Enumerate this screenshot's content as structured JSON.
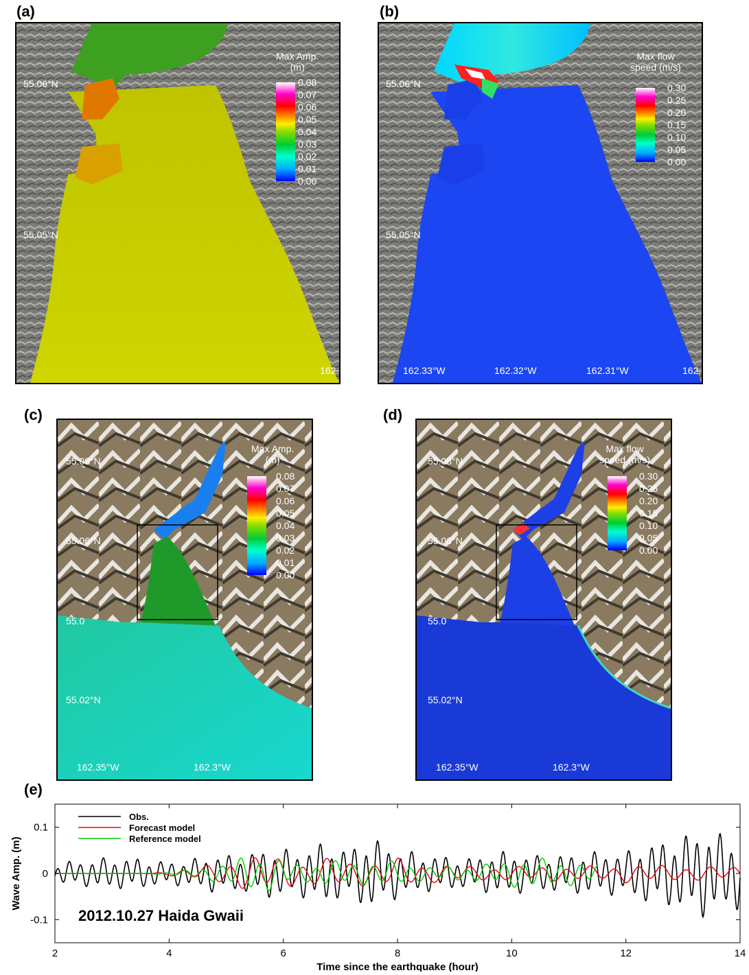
{
  "panels": {
    "a": {
      "label": "(a)",
      "lat_labels": [
        "55.06°N",
        "55.05°N"
      ],
      "lon_labels": [
        "162."
      ],
      "colorbar": {
        "title_lines": [
          "Max Amp.",
          "(m)"
        ],
        "ticks": [
          "0.08",
          "0.07",
          "0.06",
          "0.05",
          "0.04",
          "0.03",
          "0.02",
          "0.01",
          "0.00"
        ]
      }
    },
    "b": {
      "label": "(b)",
      "lat_labels": [
        "55.06°N",
        "55.05°N"
      ],
      "lon_labels": [
        "162.33°W",
        "162.32°W",
        "162.31°W",
        "162."
      ],
      "colorbar": {
        "title_lines": [
          "Max flow",
          "speed (m/s)"
        ],
        "ticks": [
          "0.30",
          "0.25",
          "0.20",
          "0.15",
          "0.10",
          "0.05",
          "0.00"
        ]
      }
    },
    "c": {
      "label": "(c)",
      "lat_labels": [
        "55.08°N",
        "55.06°N",
        "55.0",
        "55.02°N"
      ],
      "lon_labels": [
        "162.35°W",
        "162.3°W"
      ],
      "colorbar": {
        "title_lines": [
          "Max Amp.",
          "(m)"
        ],
        "ticks": [
          "0.08",
          "0.07",
          "0.06",
          "0.05",
          "0.04",
          "0.03",
          "0.02",
          "0.01",
          "0.00"
        ]
      }
    },
    "d": {
      "label": "(d)",
      "lat_labels": [
        "55.08°N",
        "55.06°N",
        "55.0",
        "55.02°N"
      ],
      "lon_labels": [
        "162.35°W",
        "162.3°W"
      ],
      "colorbar": {
        "title_lines": [
          "Max flow",
          "speed (m/s)"
        ],
        "ticks": [
          "0.30",
          "0.25",
          "0.20",
          "0.15",
          "0.10",
          "0.05",
          "0.00"
        ]
      }
    },
    "e": {
      "label": "(e)"
    }
  },
  "colors": {
    "obs": "#000000",
    "forecast": "#e8000b",
    "reference": "#00cc00"
  },
  "chart_data": {
    "type": "line",
    "title": "",
    "annotation": "2012.10.27 Haida Gwaii",
    "xlabel": "Time since the earthquake (hour)",
    "ylabel": "Wave Amp. (m)",
    "xlim": [
      2,
      14
    ],
    "ylim": [
      -0.15,
      0.15
    ],
    "xticks": [
      2,
      4,
      6,
      8,
      10,
      12,
      14
    ],
    "yticks": [
      {
        "v": 0.1,
        "label": "0.1"
      },
      {
        "v": 0,
        "label": "0"
      },
      {
        "v": -0.1,
        "label": "-0.1"
      }
    ],
    "legend_position": "top-left",
    "series": [
      {
        "name": "Obs.",
        "color": "#000000",
        "x": [
          2.0,
          2.25,
          2.5,
          2.75,
          3.0,
          3.25,
          3.5,
          3.75,
          4.0,
          4.25,
          4.5,
          4.75,
          5.0,
          5.25,
          5.5,
          5.75,
          6.0,
          6.25,
          6.5,
          6.75,
          7.0,
          7.25,
          7.5,
          7.75,
          8.0,
          8.25,
          8.5,
          8.75,
          9.0,
          9.25,
          9.5,
          9.75,
          10.0,
          10.25,
          10.5,
          10.75,
          11.0,
          11.25,
          11.5,
          11.75,
          12.0,
          12.25,
          12.5,
          12.75,
          13.0,
          13.25,
          13.5,
          13.75,
          14.0
        ],
        "amp": [
          0.015,
          0.02,
          0.02,
          0.025,
          0.025,
          0.025,
          0.025,
          0.02,
          0.02,
          0.02,
          0.025,
          0.03,
          0.03,
          0.03,
          0.035,
          0.04,
          0.04,
          0.035,
          0.045,
          0.05,
          0.04,
          0.045,
          0.06,
          0.05,
          0.04,
          0.035,
          0.03,
          0.03,
          0.025,
          0.025,
          0.03,
          0.035,
          0.035,
          0.03,
          0.03,
          0.03,
          0.03,
          0.035,
          0.035,
          0.035,
          0.035,
          0.045,
          0.05,
          0.055,
          0.06,
          0.07,
          0.07,
          0.06,
          0.06
        ],
        "period_hours": 0.2
      },
      {
        "name": "Forecast model",
        "color": "#e8000b",
        "x": [
          2.0,
          2.5,
          3.0,
          3.5,
          4.0,
          4.25,
          4.5,
          4.75,
          5.0,
          5.25,
          5.5,
          5.75,
          6.0,
          6.25,
          6.5,
          6.75,
          7.0,
          7.25,
          7.5,
          7.75,
          8.0,
          8.25,
          8.5,
          8.75,
          9.0,
          9.25,
          9.5,
          9.75,
          10.0,
          10.25,
          10.5,
          10.75,
          11.0,
          11.25,
          11.5,
          11.75,
          12.0,
          12.25,
          12.5,
          12.75,
          13.0,
          13.25,
          13.5,
          13.75,
          14.0
        ],
        "amp": [
          0,
          0,
          0,
          0,
          0.003,
          0.008,
          0.01,
          0.015,
          0.02,
          0.025,
          0.03,
          0.03,
          0.025,
          0.02,
          0.02,
          0.025,
          0.025,
          0.02,
          0.02,
          0.02,
          0.025,
          0.02,
          0.015,
          0.015,
          0.015,
          0.012,
          0.012,
          0.012,
          0.012,
          0.012,
          0.012,
          0.012,
          0.012,
          0.012,
          0.012,
          0.012,
          0.015,
          0.015,
          0.015,
          0.012,
          0.012,
          0.012,
          0.012,
          0.012,
          0.012
        ],
        "period_hours": 0.42
      },
      {
        "name": "Reference model",
        "color": "#00cc00",
        "x": [
          2.0,
          2.5,
          3.0,
          3.5,
          4.0,
          4.25,
          4.5,
          4.75,
          5.0,
          5.25,
          5.5,
          5.75,
          6.0,
          6.25,
          6.5,
          6.75,
          7.0,
          7.25,
          7.5,
          7.75,
          8.0,
          8.25,
          8.5,
          8.75,
          9.0,
          9.25,
          9.5,
          9.75,
          10.0,
          10.25,
          10.5,
          10.75,
          11.0,
          11.25,
          11.5
        ],
        "amp": [
          0,
          0,
          0,
          0,
          0.002,
          0.005,
          0.008,
          0.012,
          0.02,
          0.025,
          0.03,
          0.03,
          0.022,
          0.015,
          0.015,
          0.02,
          0.022,
          0.018,
          0.018,
          0.02,
          0.02,
          0.015,
          0.012,
          0.012,
          0.012,
          0.012,
          0.015,
          0.02,
          0.022,
          0.025,
          0.025,
          0.022,
          0.02,
          0.018,
          0.015
        ],
        "period_hours": 0.33
      }
    ]
  }
}
